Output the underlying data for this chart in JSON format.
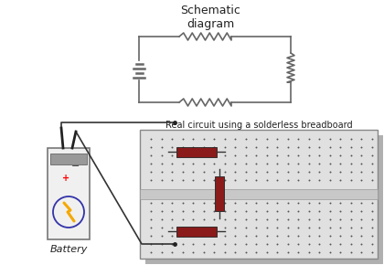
{
  "title_schematic": "Schematic\ndiagram",
  "title_breadboard": "Real circuit using a solderless breadboard",
  "battery_label": "Battery",
  "bg_color": "#ffffff",
  "breadboard_fill": "#e0e0e0",
  "breadboard_border": "#888888",
  "resistor_color": "#8b1a1a",
  "wire_color": "#444444",
  "dot_color": "#555555",
  "schematic_color": "#666666",
  "label_color": "#222222",
  "gap_fill": "#c8c8c8",
  "shadow_color": "#b0b0b0",
  "battery_fill": "#f0f0f0",
  "battery_border": "#777777",
  "bolt_color": "#f5a800",
  "bolt_circle_color": "#3333aa"
}
